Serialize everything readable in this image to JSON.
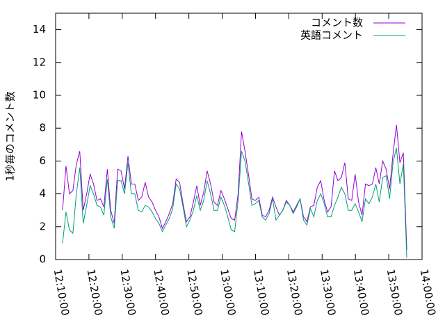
{
  "chart_data": {
    "type": "line",
    "y_label": "1秒毎のコメント数",
    "xlim": [
      "12:10:00",
      "14:00:00"
    ],
    "xticks": [
      "12:10:00",
      "12:20:00",
      "12:30:00",
      "12:40:00",
      "12:50:00",
      "13:00:00",
      "13:10:00",
      "13:20:00",
      "13:30:00",
      "13:40:00",
      "13:50:00",
      "14:00:00"
    ],
    "ylim": [
      0,
      15
    ],
    "yticks": [
      0,
      2,
      4,
      6,
      8,
      10,
      12,
      14
    ],
    "legend": "top-right",
    "x": [
      "12:12:05",
      "12:13:07",
      "12:14:09",
      "12:15:11",
      "12:16:13",
      "12:17:15",
      "12:18:17",
      "12:19:19",
      "12:20:21",
      "12:21:23",
      "12:22:25",
      "12:23:27",
      "12:24:29",
      "12:25:31",
      "12:26:33",
      "12:27:35",
      "12:28:37",
      "12:29:39",
      "12:30:41",
      "12:31:43",
      "12:32:45",
      "12:33:47",
      "12:34:49",
      "12:35:51",
      "12:36:53",
      "12:37:55",
      "12:38:57",
      "12:39:59",
      "12:41:01",
      "12:42:03",
      "12:43:05",
      "12:44:07",
      "12:45:09",
      "12:46:11",
      "12:47:13",
      "12:48:15",
      "12:49:17",
      "12:50:19",
      "12:51:21",
      "12:52:23",
      "12:53:25",
      "12:54:27",
      "12:55:29",
      "12:56:31",
      "12:57:33",
      "12:58:35",
      "12:59:37",
      "13:00:39",
      "13:01:41",
      "13:02:43",
      "13:03:45",
      "13:04:47",
      "13:05:49",
      "13:06:51",
      "13:07:53",
      "13:08:55",
      "13:09:57",
      "13:10:59",
      "13:12:01",
      "13:13:03",
      "13:14:05",
      "13:15:07",
      "13:16:09",
      "13:17:11",
      "13:18:13",
      "13:19:15",
      "13:20:17",
      "13:21:19",
      "13:22:21",
      "13:23:23",
      "13:24:25",
      "13:25:27",
      "13:26:29",
      "13:27:31",
      "13:28:33",
      "13:29:35",
      "13:30:37",
      "13:31:39",
      "13:32:41",
      "13:33:43",
      "13:34:45",
      "13:35:47",
      "13:36:49",
      "13:37:51",
      "13:38:53",
      "13:39:55",
      "13:40:57",
      "13:41:59",
      "13:43:01",
      "13:44:03",
      "13:45:05",
      "13:46:07",
      "13:47:09",
      "13:48:11",
      "13:49:13",
      "13:50:15",
      "13:51:17",
      "13:52:19",
      "13:53:21",
      "13:54:23",
      "13:55:25"
    ],
    "series": [
      {
        "name": "コメント数",
        "color": "#9400d3",
        "values": [
          3.0,
          5.7,
          4.0,
          4.2,
          5.8,
          6.6,
          3.0,
          4.0,
          5.2,
          4.6,
          3.6,
          3.7,
          3.2,
          5.5,
          3.0,
          2.2,
          5.5,
          5.4,
          4.3,
          6.3,
          4.6,
          4.6,
          3.6,
          3.8,
          4.7,
          3.8,
          3.5,
          3.0,
          2.6,
          1.9,
          2.3,
          2.8,
          3.4,
          4.9,
          4.7,
          3.4,
          2.3,
          2.6,
          3.5,
          4.5,
          3.3,
          4.1,
          5.4,
          4.6,
          3.5,
          3.3,
          4.2,
          3.7,
          3.1,
          2.5,
          2.4,
          4.0,
          7.8,
          6.6,
          5.2,
          3.7,
          3.6,
          3.8,
          2.7,
          2.6,
          3.0,
          3.8,
          3.2,
          2.7,
          3.0,
          3.6,
          3.3,
          2.9,
          3.3,
          3.7,
          2.6,
          2.3,
          3.2,
          3.3,
          4.4,
          4.8,
          3.6,
          2.9,
          3.2,
          5.4,
          4.8,
          5.0,
          5.9,
          3.7,
          3.6,
          5.2,
          3.5,
          2.7,
          4.6,
          4.5,
          4.6,
          5.6,
          4.6,
          6.0,
          5.5,
          4.3,
          6.4,
          8.2,
          5.9,
          6.5,
          0.6
        ]
      },
      {
        "name": "英語コメント",
        "color": "#009e73",
        "values": [
          1.0,
          2.9,
          1.8,
          1.6,
          4.0,
          5.6,
          2.2,
          3.3,
          4.5,
          4.0,
          3.3,
          3.2,
          2.7,
          4.9,
          2.6,
          1.9,
          4.8,
          4.8,
          4.0,
          5.9,
          4.0,
          4.0,
          3.0,
          2.9,
          3.3,
          3.2,
          2.9,
          2.5,
          2.2,
          1.7,
          2.1,
          2.5,
          3.1,
          4.6,
          4.3,
          3.2,
          2.0,
          2.4,
          3.0,
          3.9,
          3.0,
          3.6,
          4.8,
          4.0,
          3.0,
          3.0,
          3.8,
          3.3,
          2.6,
          1.8,
          1.7,
          3.6,
          6.6,
          6.0,
          4.7,
          3.3,
          3.4,
          3.6,
          2.6,
          2.4,
          2.8,
          3.7,
          2.4,
          2.7,
          3.0,
          3.5,
          3.3,
          2.8,
          3.2,
          3.7,
          2.4,
          2.1,
          3.1,
          2.6,
          3.6,
          4.0,
          3.4,
          2.6,
          2.6,
          3.3,
          3.8,
          4.4,
          4.0,
          3.0,
          3.0,
          3.4,
          2.9,
          2.3,
          3.7,
          3.4,
          3.8,
          4.6,
          3.5,
          5.0,
          5.1,
          3.7,
          5.9,
          6.8,
          4.6,
          5.8,
          0.1
        ]
      }
    ]
  }
}
